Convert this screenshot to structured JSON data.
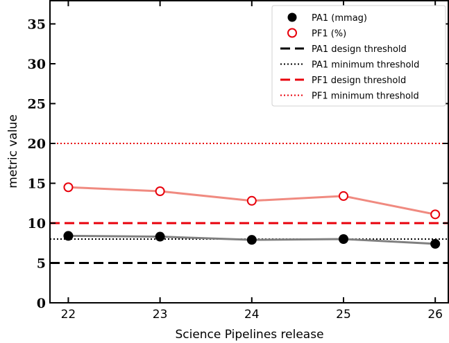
{
  "chart_data": {
    "type": "line",
    "title": "",
    "xlabel": "Science Pipelines release",
    "ylabel": "metric value",
    "categories": [
      "22",
      "23",
      "24",
      "25",
      "26"
    ],
    "x": [
      22,
      23,
      24,
      25,
      26
    ],
    "xlim": [
      21.8,
      26.15
    ],
    "ylim": [
      0,
      38
    ],
    "yticks": [
      0,
      5,
      10,
      15,
      20,
      25,
      30,
      35
    ],
    "grid": false,
    "legend_position": "top-right",
    "series": [
      {
        "name": "PA1 (mmag)",
        "values": [
          8.4,
          8.3,
          7.9,
          8.0,
          7.4
        ],
        "marker": "filled-circle",
        "marker_color": "#000000",
        "line_color": "#808080"
      },
      {
        "name": "PF1 (%)",
        "values": [
          14.5,
          14.0,
          12.8,
          13.4,
          11.1
        ],
        "marker": "open-circle",
        "marker_color": "#e8000b",
        "line_color": "#f08a80"
      }
    ],
    "thresholds": [
      {
        "name": "PA1 design threshold",
        "value": 5,
        "color": "#000000",
        "style": "dashed"
      },
      {
        "name": "PA1 minimum threshold",
        "value": 8,
        "color": "#000000",
        "style": "dotted"
      },
      {
        "name": "PF1 design threshold",
        "value": 10,
        "color": "#e8000b",
        "style": "dashed"
      },
      {
        "name": "PF1 minimum threshold",
        "value": 20,
        "color": "#e8000b",
        "style": "dotted"
      }
    ]
  }
}
